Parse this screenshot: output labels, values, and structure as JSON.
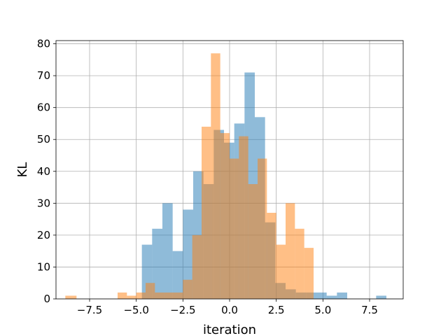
{
  "chart_data": {
    "type": "bar",
    "subtype": "overlaid-histogram",
    "title": "",
    "xlabel": "iteration",
    "ylabel": "KL",
    "xlim": [
      -9.3,
      9.3
    ],
    "ylim": [
      0,
      81
    ],
    "grid": true,
    "x_ticks": [
      -7.5,
      -5.0,
      -2.5,
      0.0,
      2.5,
      5.0,
      7.5
    ],
    "x_tick_labels": [
      "−7.5",
      "−5.0",
      "−2.5",
      "0.0",
      "2.5",
      "5.0",
      "7.5"
    ],
    "y_ticks": [
      0,
      10,
      20,
      30,
      40,
      50,
      60,
      70,
      80
    ],
    "y_tick_labels": [
      "0",
      "10",
      "20",
      "30",
      "40",
      "50",
      "60",
      "70",
      "80"
    ],
    "series": [
      {
        "color": "#1f77b4",
        "opacity": 0.5,
        "bins": [
          [
            -4.7,
            -4.15,
            17
          ],
          [
            -4.15,
            -3.6,
            22
          ],
          [
            -3.6,
            -3.05,
            30
          ],
          [
            -3.05,
            -2.5,
            15
          ],
          [
            -2.5,
            -1.95,
            28
          ],
          [
            -1.95,
            -1.4,
            40
          ],
          [
            -1.4,
            -0.85,
            36
          ],
          [
            -0.85,
            -0.3,
            53
          ],
          [
            -0.3,
            0.25,
            49
          ],
          [
            0.25,
            0.8,
            55
          ],
          [
            0.8,
            1.35,
            71
          ],
          [
            1.35,
            1.9,
            57
          ],
          [
            1.9,
            2.45,
            24
          ],
          [
            2.45,
            3.0,
            5
          ],
          [
            3.0,
            3.55,
            3
          ],
          [
            3.55,
            4.1,
            2
          ],
          [
            4.1,
            4.65,
            2
          ],
          [
            4.65,
            5.2,
            2
          ],
          [
            5.2,
            5.75,
            1
          ],
          [
            5.75,
            6.3,
            2
          ],
          [
            7.85,
            8.4,
            1
          ]
        ]
      },
      {
        "color": "#ff7f0e",
        "opacity": 0.5,
        "bins": [
          [
            -8.8,
            -8.2,
            1
          ],
          [
            -6.0,
            -5.5,
            2
          ],
          [
            -5.5,
            -5.0,
            1
          ],
          [
            -5.0,
            -4.5,
            2
          ],
          [
            -4.5,
            -4.0,
            5
          ],
          [
            -4.0,
            -3.5,
            2
          ],
          [
            -3.5,
            -3.0,
            2
          ],
          [
            -3.0,
            -2.5,
            2
          ],
          [
            -2.5,
            -2.0,
            6
          ],
          [
            -2.0,
            -1.5,
            20
          ],
          [
            -1.5,
            -1.0,
            54
          ],
          [
            -1.0,
            -0.5,
            77
          ],
          [
            -0.5,
            0.0,
            52
          ],
          [
            0.0,
            0.5,
            44
          ],
          [
            0.5,
            1.0,
            51
          ],
          [
            1.0,
            1.5,
            36
          ],
          [
            1.5,
            2.0,
            44
          ],
          [
            2.0,
            2.5,
            27
          ],
          [
            2.5,
            3.0,
            17
          ],
          [
            3.0,
            3.5,
            30
          ],
          [
            3.5,
            4.0,
            22
          ],
          [
            4.0,
            4.5,
            16
          ]
        ]
      }
    ]
  }
}
